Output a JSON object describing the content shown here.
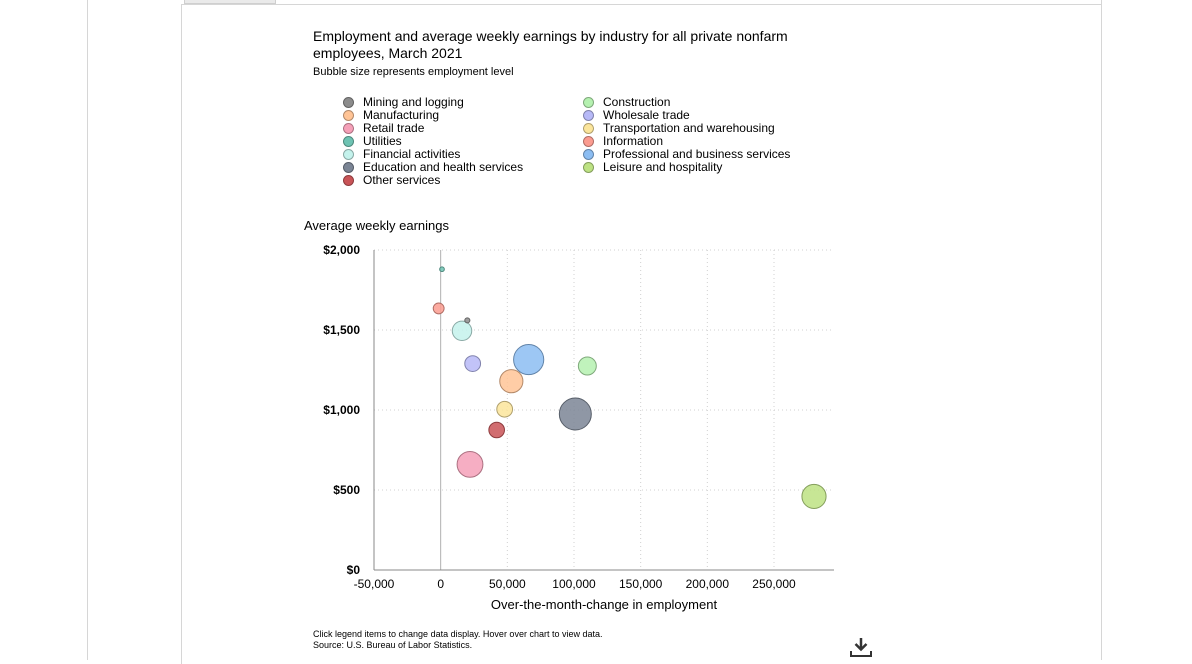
{
  "chart_data": {
    "type": "scatter",
    "title": "Employment and average weekly earnings by industry for all private nonfarm employees, March 2021",
    "subtitle": "Bubble size represents employment level",
    "xlabel": "Over-the-month-change in employment",
    "ylabel": "Average weekly earnings",
    "xlim": [
      -50000,
      295000
    ],
    "ylim": [
      0,
      2000
    ],
    "x_ticks": [
      -50000,
      0,
      50000,
      100000,
      150000,
      200000,
      250000
    ],
    "x_tick_labels": [
      "-50,000",
      "0",
      "50,000",
      "100,000",
      "150,000",
      "200,000",
      "250,000"
    ],
    "y_ticks": [
      0,
      500,
      1000,
      1500,
      2000
    ],
    "y_tick_labels": [
      "$0",
      "$500",
      "$1,000",
      "$1,500",
      "$2,000"
    ],
    "grid": true,
    "legend_position": "top",
    "series": [
      {
        "name": "Mining and logging",
        "color": "#8c8c8c",
        "x": 20000,
        "y": 1560,
        "size": 0.6
      },
      {
        "name": "Construction",
        "color": "#b5f1b0",
        "x": 110000,
        "y": 1275,
        "size": 7.4
      },
      {
        "name": "Manufacturing",
        "color": "#ffc496",
        "x": 53000,
        "y": 1180,
        "size": 12.3
      },
      {
        "name": "Wholesale trade",
        "color": "#b7b9f7",
        "x": 24000,
        "y": 1290,
        "size": 5.7
      },
      {
        "name": "Retail trade",
        "color": "#f5a0b8",
        "x": 22000,
        "y": 660,
        "size": 15.3
      },
      {
        "name": "Transportation and warehousing",
        "color": "#fbe59b",
        "x": 48000,
        "y": 1005,
        "size": 5.7
      },
      {
        "name": "Utilities",
        "color": "#6ec3b3",
        "x": 1000,
        "y": 1880,
        "size": 0.5
      },
      {
        "name": "Information",
        "color": "#fb9c90",
        "x": -1500,
        "y": 1635,
        "size": 2.7
      },
      {
        "name": "Financial activities",
        "color": "#c4f2ec",
        "x": 16000,
        "y": 1495,
        "size": 8.7
      },
      {
        "name": "Professional and business services",
        "color": "#8cbdf2",
        "x": 66000,
        "y": 1315,
        "size": 20.9
      },
      {
        "name": "Education and health services",
        "color": "#7b8595",
        "x": 101000,
        "y": 975,
        "size": 23.5
      },
      {
        "name": "Leisure and hospitality",
        "color": "#bde283",
        "x": 280000,
        "y": 460,
        "size": 13.4
      },
      {
        "name": "Other services",
        "color": "#c95457",
        "x": 42000,
        "y": 875,
        "size": 5.6
      }
    ]
  },
  "footnote": {
    "line1": "Click legend items to change data display. Hover over chart to view data.",
    "line2": "Source: U.S. Bureau of Labor Statistics."
  },
  "icons": {
    "download": "download-icon"
  }
}
